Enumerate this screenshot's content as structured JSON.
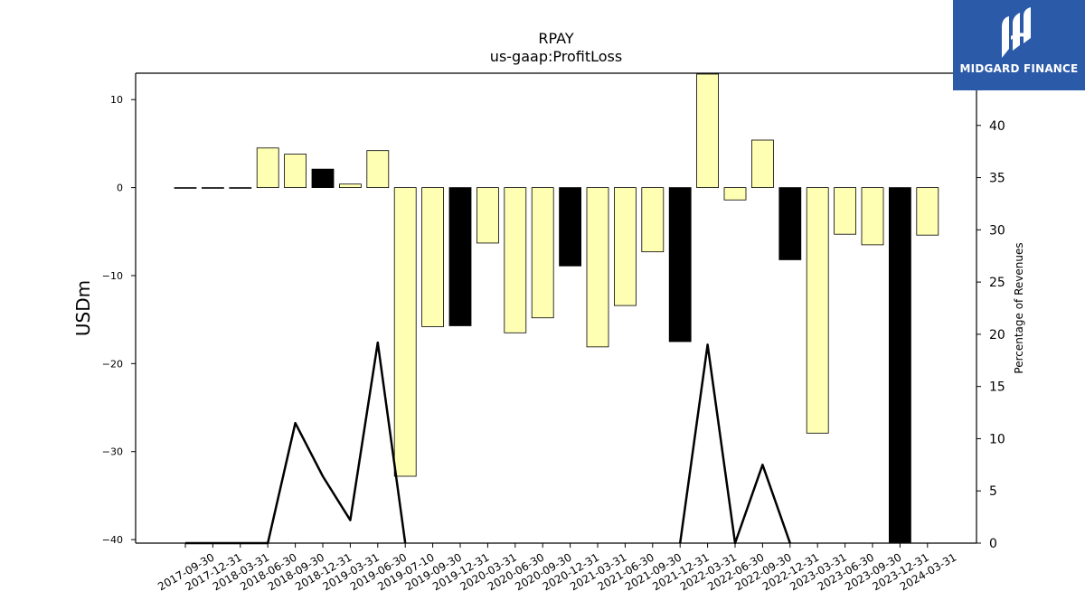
{
  "chart_data": {
    "type": "bar",
    "title": "RPAY",
    "subtitle": "us-gaap:ProfitLoss",
    "ylabel": "USDm",
    "y2label": "Percentage of Revenues",
    "ylim": [
      -40.4,
      13.0
    ],
    "y2lim": [
      0,
      45
    ],
    "yticks": [
      10,
      0,
      -10,
      -20,
      -30,
      -40
    ],
    "y2ticks": [
      0,
      5,
      10,
      15,
      20,
      25,
      30,
      35,
      40
    ],
    "categories": [
      "2017-09-30",
      "2017-12-31",
      "2018-03-31",
      "2018-06-30",
      "2018-09-30",
      "2018-12-31",
      "2019-03-31",
      "2019-06-30",
      "2019-07-10",
      "2019-09-30",
      "2019-12-31",
      "2020-03-31",
      "2020-06-30",
      "2020-09-30",
      "2020-12-31",
      "2021-03-31",
      "2021-06-30",
      "2021-09-30",
      "2021-12-31",
      "2022-03-31",
      "2022-06-30",
      "2022-09-30",
      "2022-12-31",
      "2023-03-31",
      "2023-06-30",
      "2023-09-30",
      "2023-12-31",
      "2024-03-31"
    ],
    "series": [
      {
        "kind": "bar",
        "values": [
          0.0,
          0.0,
          0.0,
          4.5,
          3.8,
          2.1,
          0.4,
          4.2,
          -32.8,
          -15.8,
          -15.7,
          -6.3,
          -16.5,
          -14.8,
          -8.9,
          -18.1,
          -13.4,
          -7.3,
          -17.5,
          12.9,
          -1.4,
          5.4,
          -8.2,
          -27.9,
          -5.3,
          -6.5,
          -40.3,
          -5.4
        ],
        "colors": [
          "#ffffb3",
          "#ffffb3",
          "#ffffb3",
          "#ffffb3",
          "#ffffb3",
          "#000000",
          "#ffffb3",
          "#ffffb3",
          "#ffffb3",
          "#ffffb3",
          "#000000",
          "#ffffb3",
          "#ffffb3",
          "#ffffb3",
          "#000000",
          "#ffffb3",
          "#ffffb3",
          "#ffffb3",
          "#000000",
          "#ffffb3",
          "#ffffb3",
          "#ffffb3",
          "#000000",
          "#ffffb3",
          "#ffffb3",
          "#ffffb3",
          "#000000",
          "#ffffb3"
        ]
      },
      {
        "kind": "line",
        "axis": "right",
        "values": [
          0.0,
          0.0,
          0.0,
          0.0,
          11.5,
          6.4,
          2.2,
          19.2,
          0.0,
          null,
          null,
          null,
          null,
          null,
          null,
          null,
          null,
          null,
          0.0,
          19.0,
          0.0,
          7.5,
          0.0,
          null,
          null,
          null,
          null,
          null
        ],
        "color": "#000000"
      }
    ],
    "grid": false,
    "legend": "none"
  },
  "logo": {
    "text": "MIDGARD FINANCE",
    "color": "#2b5aa8"
  }
}
